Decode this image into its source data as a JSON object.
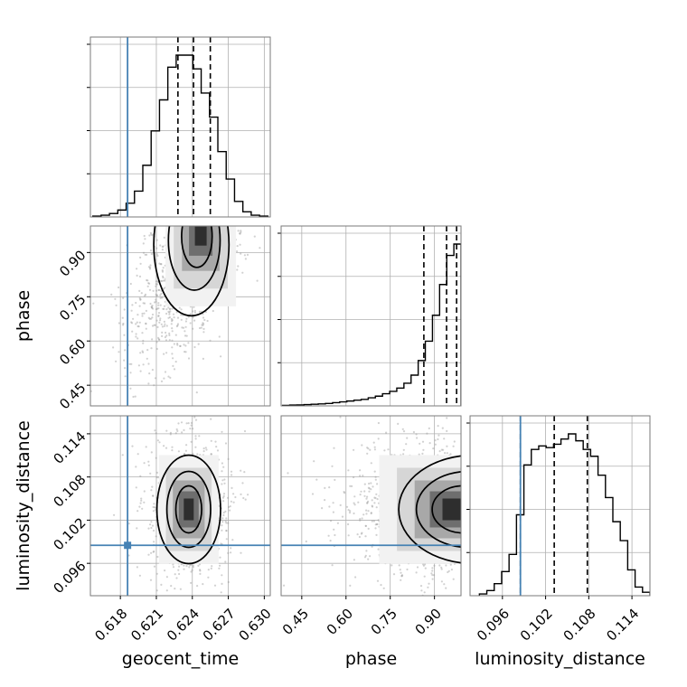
{
  "chart_data": {
    "type": "corner",
    "parameters": [
      {
        "name": "geocent_time",
        "label": "geocent_time",
        "range": [
          0.6155,
          0.6305
        ],
        "ticks": [
          0.618,
          0.621,
          0.624,
          0.627,
          0.63
        ],
        "tick_labels": [
          "0.618",
          "0.621",
          "0.624",
          "0.627",
          "0.630"
        ],
        "truth": 0.6186,
        "quantiles": [
          0.6228,
          0.6241,
          0.6255
        ],
        "histogram": [
          0.5,
          1,
          2,
          4,
          8,
          15,
          30,
          50,
          68,
          87,
          94,
          94,
          86,
          72,
          58,
          38,
          22,
          9,
          3,
          1,
          0.5
        ]
      },
      {
        "name": "phase",
        "label": "phase",
        "range": [
          0.38,
          0.99
        ],
        "ticks": [
          0.45,
          0.6,
          0.75,
          0.9
        ],
        "tick_labels": [
          "0.45",
          "0.60",
          "0.75",
          "0.90"
        ],
        "truth": null,
        "quantiles": [
          0.864,
          0.941,
          0.975
        ],
        "histogram": [
          0.3,
          0.5,
          0.6,
          0.8,
          1,
          1.2,
          1.5,
          2,
          2.5,
          3,
          3.5,
          4,
          5,
          6,
          7.5,
          9,
          11,
          14,
          19,
          28,
          40,
          56,
          75,
          93,
          100
        ]
      },
      {
        "name": "luminosity_distance",
        "label": "luminosity_distance",
        "range": [
          0.0915,
          0.1165
        ],
        "ticks": [
          0.096,
          0.102,
          0.108,
          0.114
        ],
        "tick_labels": [
          "0.096",
          "0.102",
          "0.108",
          "0.114"
        ],
        "truth": 0.0985,
        "quantiles": [
          0.0985,
          0.1032,
          0.1078
        ],
        "histogram": [
          1,
          3,
          7,
          14,
          24,
          47,
          76,
          85,
          87,
          86,
          88,
          91,
          94,
          90,
          85,
          81,
          70,
          57,
          43,
          32,
          15,
          5,
          2
        ]
      }
    ],
    "density_2d": [
      {
        "x": "geocent_time",
        "y": "phase",
        "peak": [
          0.6247,
          0.975
        ],
        "contour_levels": [
          "inner",
          "middle",
          "outer"
        ]
      },
      {
        "x": "geocent_time",
        "y": "luminosity_distance",
        "peak": [
          0.6237,
          0.1035
        ],
        "contour_levels": [
          "inner",
          "middle",
          "outer"
        ]
      },
      {
        "x": "phase",
        "y": "luminosity_distance",
        "peak": [
          0.97,
          0.1035
        ],
        "contour_levels": [
          "inner",
          "middle",
          "outer"
        ]
      }
    ],
    "truth_color": "#4682b4",
    "histogram_color": "#000000",
    "grid": true,
    "legend": "none",
    "title": ""
  }
}
